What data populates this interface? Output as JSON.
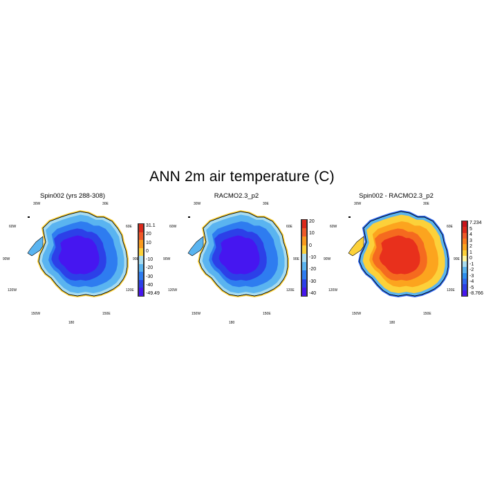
{
  "main_title": "ANN 2m air temperature (C)",
  "chart_data": [
    {
      "type": "heatmap",
      "title": "Spin002 (yrs 288-308)",
      "projection": "south-polar-stereographic",
      "lon_labels": [
        "30W",
        "30E",
        "60W",
        "60E",
        "90W",
        "90E",
        "120W",
        "120E",
        "150W",
        "150E",
        "180"
      ],
      "colorbar": {
        "labels": [
          "31.1",
          "20",
          "10",
          "0",
          "-10",
          "-20",
          "-30",
          "-40",
          "-49.49"
        ],
        "colors": [
          "#dd2a1b",
          "#f05a28",
          "#fa9a1e",
          "#fcd13a",
          "#a8dcf0",
          "#5ab4f0",
          "#2e7cf0",
          "#2c40e8",
          "#4616f0"
        ]
      },
      "regions": {
        "interior": "#4616f0",
        "plateau": "#2c40e8",
        "slope": "#2e7cf0",
        "coast": "#5ab4f0",
        "margin": "#a8dcf0",
        "edge": "#fcd13a"
      }
    },
    {
      "type": "heatmap",
      "title": "RACMO2.3_p2",
      "projection": "south-polar-stereographic",
      "lon_labels": [
        "30W",
        "30E",
        "60W",
        "60E",
        "90W",
        "90E",
        "120W",
        "120E",
        "150W",
        "150E",
        "180"
      ],
      "colorbar": {
        "labels": [
          "20",
          "10",
          "0",
          "-10",
          "-20",
          "-30",
          "-40"
        ],
        "colors": [
          "#dd2a1b",
          "#f05a28",
          "#fa9a1e",
          "#fcd13a",
          "#a8dcf0",
          "#5ab4f0",
          "#2e7cf0",
          "#2c40e8",
          "#4616f0"
        ]
      },
      "regions": {
        "interior": "#4616f0",
        "plateau": "#2c40e8",
        "slope": "#2e7cf0",
        "coast": "#5ab4f0",
        "margin": "#a8dcf0",
        "edge": "#fcd13a"
      }
    },
    {
      "type": "heatmap",
      "title": "Spin002 - RACMO2.3_p2",
      "projection": "south-polar-stereographic",
      "lon_labels": [
        "30W",
        "30E",
        "60W",
        "60E",
        "90W",
        "90E",
        "120W",
        "120E",
        "150W",
        "150E",
        "180"
      ],
      "colorbar": {
        "labels": [
          "7.234",
          "5",
          "4",
          "3",
          "2",
          "1",
          "0",
          "-1",
          "-2",
          "-3",
          "-4",
          "-5",
          "-8.766"
        ],
        "colors": [
          "#c8141a",
          "#dd2a1b",
          "#f05a28",
          "#fa7d1e",
          "#fca41e",
          "#fcd13a",
          "#fff7a0",
          "#a8dcf0",
          "#5ab4f0",
          "#2e90f0",
          "#2e68f0",
          "#2c40e8",
          "#4616f0"
        ]
      },
      "regions": {
        "interior": "#e8301c",
        "plateau": "#f56a1f",
        "slope": "#fca41e",
        "coast": "#fcd13a",
        "margin": "#5ab4f0",
        "edge": "#2e68f0"
      }
    }
  ]
}
